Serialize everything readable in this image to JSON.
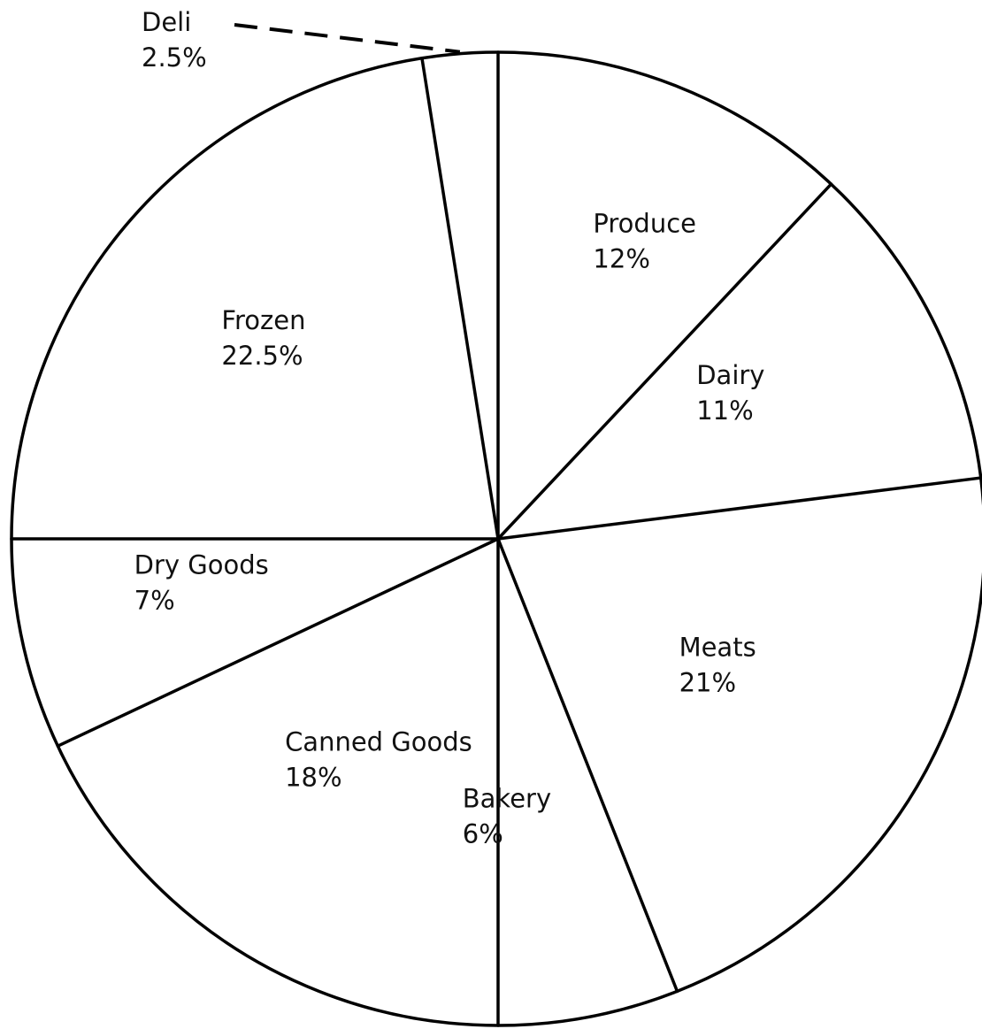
{
  "chart_data": {
    "type": "pie",
    "start_angle": "12 o'clock",
    "direction": "clockwise",
    "slices": [
      {
        "label": "Produce",
        "pct_text": "12%",
        "value": 12
      },
      {
        "label": "Dairy",
        "pct_text": "11%",
        "value": 11
      },
      {
        "label": "Meats",
        "pct_text": "21%",
        "value": 21
      },
      {
        "label": "Bakery",
        "pct_text": "6%",
        "value": 6
      },
      {
        "label": "Canned Goods",
        "pct_text": "18%",
        "value": 18
      },
      {
        "label": "Dry Goods",
        "pct_text": "7%",
        "value": 7
      },
      {
        "label": "Frozen",
        "pct_text": "22.5%",
        "value": 22.5
      },
      {
        "label": "Deli",
        "pct_text": "2.5%",
        "value": 2.5
      }
    ],
    "colors": {
      "stroke": "#000000",
      "fill": "#ffffff",
      "text": "#111111"
    }
  }
}
